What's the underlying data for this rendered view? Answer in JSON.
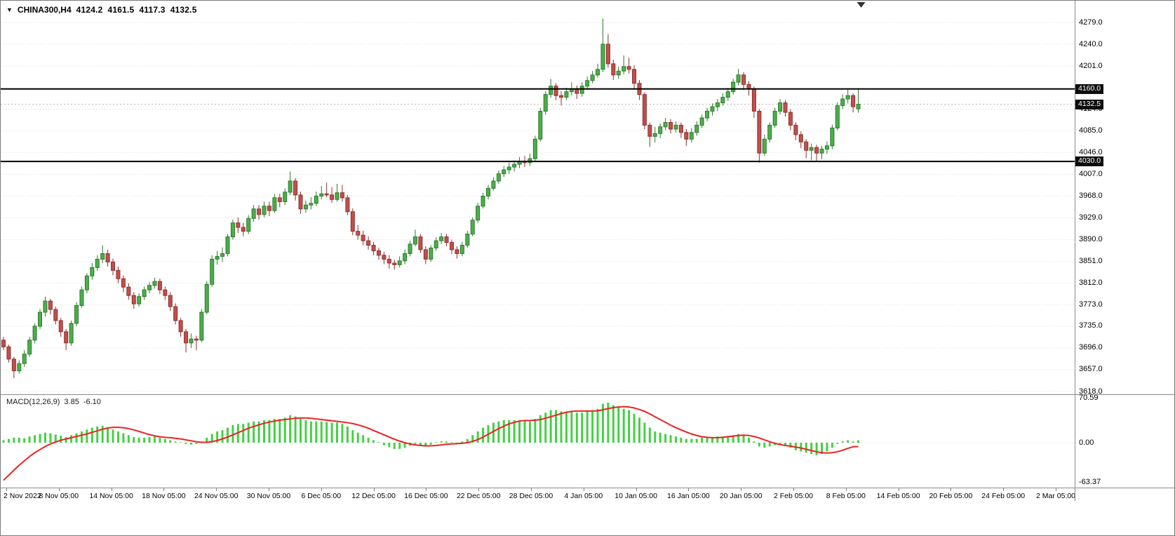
{
  "header": {
    "symbol_period": "CHINA300,H4",
    "open": "4124.2",
    "high": "4161.5",
    "low": "4117.3",
    "close": "4132.5",
    "dropdown_icon": "chart-menu"
  },
  "colors": {
    "up_fill": "#4cae4c",
    "up_border": "#2d7a2d",
    "down_fill": "#c0504d",
    "down_border": "#8f2f2c",
    "macd_hist": "#44d044",
    "macd_signal": "#ec2222",
    "hline": "#000000",
    "grid": "#d8d8d8",
    "current_line": "#b5b5b5",
    "tag_bg": "#0d0d0d",
    "tag_text": "#ffffff",
    "background": "#ffffff"
  },
  "chart_data": {
    "type": "candlestick",
    "symbol": "CHINA300",
    "timeframe": "H4",
    "ohlc_current": [
      4124.2,
      4161.5,
      4117.3,
      4132.5
    ],
    "ylim": [
      3618,
      4279
    ],
    "grid": "dotted-horizontal",
    "hlines": [
      {
        "price": 4160.0,
        "label": "4160.0"
      },
      {
        "price": 4030.0,
        "label": "4030.0"
      }
    ],
    "current_price": {
      "price": 4132.5,
      "label": "4132.5"
    },
    "price_axis_labels": [
      {
        "text": "4279.0",
        "price": 4279
      },
      {
        "text": "4240.0",
        "price": 4240
      },
      {
        "text": "4201.0",
        "price": 4201
      },
      {
        "text": "4124.0",
        "price": 4124
      },
      {
        "text": "4085.0",
        "price": 4085
      },
      {
        "text": "4046.0",
        "price": 4046
      },
      {
        "text": "4007.0",
        "price": 4007
      },
      {
        "text": "3968.0",
        "price": 3968
      },
      {
        "text": "3929.0",
        "price": 3929
      },
      {
        "text": "3890.0",
        "price": 3890
      },
      {
        "text": "3851.0",
        "price": 3851
      },
      {
        "text": "3812.0",
        "price": 3812
      },
      {
        "text": "3773.0",
        "price": 3773
      },
      {
        "text": "3735.0",
        "price": 3735
      },
      {
        "text": "3696.0",
        "price": 3696
      },
      {
        "text": "3657.0",
        "price": 3657
      },
      {
        "text": "3618.0",
        "price": 3618
      }
    ],
    "time_axis_labels": [
      "2 Nov 2022",
      "8 Nov 05:00",
      "14 Nov 05:00",
      "18 Nov 05:00",
      "24 Nov 05:00",
      "30 Nov 05:00",
      "6 Dec 05:00",
      "12 Dec 05:00",
      "16 Dec 05:00",
      "22 Dec 05:00",
      "28 Dec 05:00",
      "4 Jan 05:00",
      "10 Jan 05:00",
      "16 Jan 05:00",
      "20 Jan 05:00",
      "2 Feb 05:00",
      "8 Feb 05:00",
      "14 Feb 05:00",
      "20 Feb 05:00",
      "24 Feb 05:00",
      "2 Mar 05:00"
    ],
    "candles": [
      [
        3710,
        3716,
        3692,
        3698
      ],
      [
        3698,
        3702,
        3670,
        3676
      ],
      [
        3676,
        3680,
        3642,
        3655
      ],
      [
        3655,
        3674,
        3650,
        3668
      ],
      [
        3668,
        3692,
        3662,
        3685
      ],
      [
        3685,
        3716,
        3680,
        3710
      ],
      [
        3710,
        3740,
        3704,
        3735
      ],
      [
        3735,
        3766,
        3730,
        3760
      ],
      [
        3760,
        3788,
        3752,
        3780
      ],
      [
        3780,
        3784,
        3756,
        3765
      ],
      [
        3765,
        3770,
        3738,
        3745
      ],
      [
        3745,
        3750,
        3716,
        3725
      ],
      [
        3725,
        3730,
        3692,
        3705
      ],
      [
        3705,
        3745,
        3700,
        3740
      ],
      [
        3740,
        3778,
        3735,
        3772
      ],
      [
        3772,
        3806,
        3768,
        3800
      ],
      [
        3800,
        3830,
        3794,
        3825
      ],
      [
        3825,
        3848,
        3818,
        3840
      ],
      [
        3840,
        3862,
        3834,
        3855
      ],
      [
        3855,
        3880,
        3848,
        3865
      ],
      [
        3865,
        3872,
        3842,
        3850
      ],
      [
        3850,
        3856,
        3826,
        3835
      ],
      [
        3835,
        3842,
        3812,
        3820
      ],
      [
        3820,
        3826,
        3796,
        3805
      ],
      [
        3805,
        3812,
        3782,
        3790
      ],
      [
        3790,
        3796,
        3766,
        3775
      ],
      [
        3775,
        3794,
        3770,
        3788
      ],
      [
        3788,
        3806,
        3782,
        3800
      ],
      [
        3800,
        3814,
        3794,
        3808
      ],
      [
        3808,
        3822,
        3802,
        3815
      ],
      [
        3815,
        3820,
        3792,
        3800
      ],
      [
        3800,
        3806,
        3782,
        3790
      ],
      [
        3790,
        3796,
        3762,
        3770
      ],
      [
        3770,
        3776,
        3738,
        3745
      ],
      [
        3745,
        3750,
        3716,
        3725
      ],
      [
        3725,
        3730,
        3688,
        3705
      ],
      [
        3705,
        3722,
        3696,
        3712
      ],
      [
        3712,
        3718,
        3692,
        3710
      ],
      [
        3710,
        3766,
        3706,
        3760
      ],
      [
        3760,
        3816,
        3756,
        3810
      ],
      [
        3810,
        3862,
        3806,
        3855
      ],
      [
        3855,
        3870,
        3845,
        3860
      ],
      [
        3860,
        3876,
        3850,
        3865
      ],
      [
        3865,
        3900,
        3860,
        3895
      ],
      [
        3895,
        3926,
        3890,
        3920
      ],
      [
        3920,
        3930,
        3902,
        3912
      ],
      [
        3912,
        3920,
        3896,
        3905
      ],
      [
        3905,
        3934,
        3900,
        3928
      ],
      [
        3928,
        3952,
        3922,
        3945
      ],
      [
        3945,
        3952,
        3926,
        3935
      ],
      [
        3935,
        3958,
        3930,
        3950
      ],
      [
        3950,
        3958,
        3932,
        3942
      ],
      [
        3942,
        3972,
        3938,
        3965
      ],
      [
        3965,
        3972,
        3948,
        3958
      ],
      [
        3958,
        3982,
        3952,
        3975
      ],
      [
        3975,
        4012,
        3970,
        3995
      ],
      [
        3995,
        4000,
        3960,
        3970
      ],
      [
        3970,
        3976,
        3936,
        3945
      ],
      [
        3945,
        3960,
        3938,
        3952
      ],
      [
        3952,
        3966,
        3944,
        3955
      ],
      [
        3955,
        3976,
        3950,
        3968
      ],
      [
        3968,
        3986,
        3962,
        3972
      ],
      [
        3972,
        3992,
        3966,
        3970
      ],
      [
        3970,
        3984,
        3956,
        3962
      ],
      [
        3962,
        3990,
        3958,
        3974
      ],
      [
        3974,
        3988,
        3958,
        3965
      ],
      [
        3965,
        3970,
        3934,
        3940
      ],
      [
        3940,
        3946,
        3898,
        3905
      ],
      [
        3905,
        3916,
        3890,
        3898
      ],
      [
        3898,
        3906,
        3880,
        3888
      ],
      [
        3888,
        3896,
        3872,
        3880
      ],
      [
        3880,
        3886,
        3862,
        3870
      ],
      [
        3870,
        3876,
        3854,
        3862
      ],
      [
        3862,
        3868,
        3846,
        3855
      ],
      [
        3855,
        3862,
        3838,
        3848
      ],
      [
        3848,
        3854,
        3836,
        3845
      ],
      [
        3845,
        3860,
        3840,
        3852
      ],
      [
        3852,
        3872,
        3846,
        3865
      ],
      [
        3865,
        3888,
        3860,
        3882
      ],
      [
        3882,
        3908,
        3878,
        3895
      ],
      [
        3895,
        3900,
        3866,
        3872
      ],
      [
        3872,
        3878,
        3846,
        3855
      ],
      [
        3855,
        3880,
        3850,
        3875
      ],
      [
        3875,
        3894,
        3870,
        3888
      ],
      [
        3888,
        3902,
        3882,
        3895
      ],
      [
        3895,
        3900,
        3878,
        3885
      ],
      [
        3885,
        3890,
        3864,
        3872
      ],
      [
        3872,
        3878,
        3856,
        3865
      ],
      [
        3865,
        3886,
        3860,
        3880
      ],
      [
        3880,
        3906,
        3876,
        3900
      ],
      [
        3900,
        3930,
        3896,
        3925
      ],
      [
        3925,
        3956,
        3920,
        3950
      ],
      [
        3950,
        3974,
        3946,
        3968
      ],
      [
        3968,
        3988,
        3962,
        3982
      ],
      [
        3982,
        4002,
        3978,
        3995
      ],
      [
        3995,
        4014,
        3990,
        4008
      ],
      [
        4008,
        4022,
        4002,
        4015
      ],
      [
        4015,
        4028,
        4008,
        4020
      ],
      [
        4020,
        4032,
        4012,
        4025
      ],
      [
        4025,
        4038,
        4018,
        4030
      ],
      [
        4030,
        4040,
        4020,
        4028
      ],
      [
        4028,
        4044,
        4022,
        4035
      ],
      [
        4035,
        4076,
        4030,
        4070
      ],
      [
        4070,
        4126,
        4066,
        4120
      ],
      [
        4120,
        4156,
        4114,
        4150
      ],
      [
        4150,
        4178,
        4144,
        4165
      ],
      [
        4165,
        4170,
        4140,
        4148
      ],
      [
        4148,
        4156,
        4130,
        4145
      ],
      [
        4145,
        4162,
        4140,
        4155
      ],
      [
        4155,
        4172,
        4148,
        4160
      ],
      [
        4160,
        4166,
        4142,
        4152
      ],
      [
        4152,
        4172,
        4146,
        4165
      ],
      [
        4165,
        4182,
        4158,
        4175
      ],
      [
        4175,
        4192,
        4170,
        4185
      ],
      [
        4185,
        4205,
        4180,
        4195
      ],
      [
        4195,
        4286,
        4190,
        4240
      ],
      [
        4240,
        4258,
        4198,
        4205
      ],
      [
        4205,
        4212,
        4176,
        4185
      ],
      [
        4185,
        4200,
        4178,
        4192
      ],
      [
        4192,
        4220,
        4186,
        4200
      ],
      [
        4200,
        4216,
        4188,
        4195
      ],
      [
        4195,
        4202,
        4160,
        4170
      ],
      [
        4170,
        4176,
        4140,
        4150
      ],
      [
        4150,
        4154,
        4088,
        4095
      ],
      [
        4095,
        4100,
        4056,
        4075
      ],
      [
        4075,
        4092,
        4064,
        4080
      ],
      [
        4080,
        4098,
        4072,
        4092
      ],
      [
        4092,
        4108,
        4086,
        4100
      ],
      [
        4100,
        4106,
        4080,
        4088
      ],
      [
        4088,
        4102,
        4082,
        4095
      ],
      [
        4095,
        4100,
        4072,
        4082
      ],
      [
        4082,
        4088,
        4058,
        4070
      ],
      [
        4070,
        4090,
        4064,
        4082
      ],
      [
        4082,
        4102,
        4076,
        4095
      ],
      [
        4095,
        4114,
        4090,
        4108
      ],
      [
        4108,
        4126,
        4102,
        4120
      ],
      [
        4120,
        4134,
        4112,
        4128
      ],
      [
        4128,
        4142,
        4120,
        4135
      ],
      [
        4135,
        4152,
        4130,
        4145
      ],
      [
        4145,
        4162,
        4138,
        4155
      ],
      [
        4155,
        4178,
        4150,
        4172
      ],
      [
        4172,
        4196,
        4166,
        4185
      ],
      [
        4185,
        4190,
        4158,
        4168
      ],
      [
        4168,
        4174,
        4148,
        4160
      ],
      [
        4160,
        4164,
        4108,
        4120
      ],
      [
        4120,
        4124,
        4028,
        4045
      ],
      [
        4045,
        4078,
        4040,
        4070
      ],
      [
        4070,
        4100,
        4064,
        4095
      ],
      [
        4095,
        4126,
        4090,
        4120
      ],
      [
        4120,
        4142,
        4114,
        4135
      ],
      [
        4135,
        4140,
        4110,
        4118
      ],
      [
        4118,
        4124,
        4086,
        4095
      ],
      [
        4095,
        4100,
        4068,
        4078
      ],
      [
        4078,
        4084,
        4054,
        4065
      ],
      [
        4065,
        4070,
        4036,
        4050
      ],
      [
        4050,
        4062,
        4032,
        4055
      ],
      [
        4055,
        4060,
        4030,
        4045
      ],
      [
        4045,
        4058,
        4034,
        4052
      ],
      [
        4052,
        4066,
        4044,
        4058
      ],
      [
        4058,
        4096,
        4052,
        4090
      ],
      [
        4090,
        4136,
        4086,
        4130
      ],
      [
        4130,
        4150,
        4124,
        4142
      ],
      [
        4142,
        4160,
        4134,
        4148
      ],
      [
        4148,
        4152,
        4118,
        4128
      ],
      [
        4124.2,
        4161.5,
        4117.3,
        4132.5
      ]
    ],
    "indicator": {
      "name": "MACD(12,26,9)",
      "value_main": "3.85",
      "value_signal": "-6.10",
      "axis_labels": [
        {
          "text": "70.59",
          "value": 70.59
        },
        {
          "text": "0.00",
          "value": 0
        },
        {
          "text": "-63.37",
          "value": -63.37
        }
      ],
      "histogram": [
        4,
        6,
        8,
        8,
        7,
        10,
        12,
        14,
        16,
        15,
        13,
        11,
        9,
        12,
        15,
        18,
        21,
        24,
        26,
        27,
        24,
        21,
        18,
        15,
        12,
        9,
        8,
        8,
        9,
        10,
        8,
        6,
        4,
        2,
        0,
        -2,
        -3,
        -2,
        2,
        8,
        14,
        18,
        20,
        24,
        28,
        30,
        30,
        32,
        34,
        34,
        36,
        36,
        38,
        38,
        40,
        44,
        42,
        38,
        36,
        34,
        34,
        34,
        33,
        32,
        32,
        30,
        26,
        20,
        16,
        12,
        8,
        4,
        0,
        -4,
        -7,
        -10,
        -10,
        -8,
        -5,
        -2,
        -4,
        -6,
        -3,
        0,
        2,
        2,
        0,
        -2,
        2,
        6,
        12,
        18,
        24,
        28,
        32,
        34,
        36,
        36,
        36,
        36,
        35,
        34,
        38,
        44,
        48,
        52,
        52,
        50,
        50,
        50,
        48,
        48,
        50,
        52,
        54,
        62,
        64,
        60,
        56,
        54,
        52,
        46,
        40,
        32,
        24,
        18,
        16,
        14,
        12,
        10,
        8,
        6,
        6,
        6,
        8,
        8,
        9,
        10,
        10,
        11,
        12,
        14,
        12,
        8,
        2,
        -6,
        -8,
        -6,
        -4,
        -2,
        -4,
        -8,
        -12,
        -14,
        -16,
        -18,
        -20,
        -18,
        -14,
        -8,
        -2,
        2,
        4,
        2,
        3.85
      ],
      "signal": [
        -60,
        -52,
        -44,
        -36,
        -29,
        -22,
        -16,
        -11,
        -6,
        -2,
        1,
        4,
        6,
        8,
        10,
        12,
        14,
        16.5,
        19,
        21.5,
        23.5,
        24.5,
        24.5,
        24,
        22.5,
        20.5,
        18,
        15.5,
        13,
        11,
        9.5,
        8.5,
        8,
        7,
        6,
        4.5,
        3,
        1.5,
        0.5,
        0.5,
        1.5,
        3.5,
        6,
        9,
        12.5,
        16,
        19.5,
        23,
        26,
        28.5,
        31,
        33,
        34.5,
        36,
        37,
        38,
        39,
        39.5,
        39.5,
        39,
        38,
        37,
        36,
        35,
        34,
        33,
        32,
        30.5,
        28.5,
        26,
        23,
        19.5,
        16,
        12.5,
        9,
        5.5,
        2.5,
        0,
        -2,
        -3.5,
        -4.5,
        -5,
        -5,
        -4.5,
        -3.5,
        -2.5,
        -2,
        -1.5,
        -1,
        0,
        2,
        5,
        9,
        13.5,
        18,
        22.5,
        26.5,
        30,
        32.5,
        34.5,
        35.5,
        35.5,
        36,
        37,
        39,
        41.5,
        44,
        46.5,
        48.5,
        50,
        50.5,
        50.5,
        50.5,
        50.5,
        51,
        52.5,
        54.5,
        56,
        57,
        57.5,
        57,
        55.5,
        53,
        50,
        46,
        41.5,
        37,
        32.5,
        28,
        24,
        20.5,
        17,
        14,
        11.5,
        9.5,
        8.5,
        8,
        8,
        8.5,
        9.5,
        10.5,
        11.5,
        12,
        11.5,
        10,
        7.5,
        4.5,
        1.5,
        -1,
        -3,
        -4.5,
        -5.5,
        -7,
        -8.5,
        -10.5,
        -12.5,
        -14.5,
        -16,
        -16.5,
        -16,
        -14.5,
        -12,
        -9,
        -6.5,
        -6.1
      ]
    }
  }
}
